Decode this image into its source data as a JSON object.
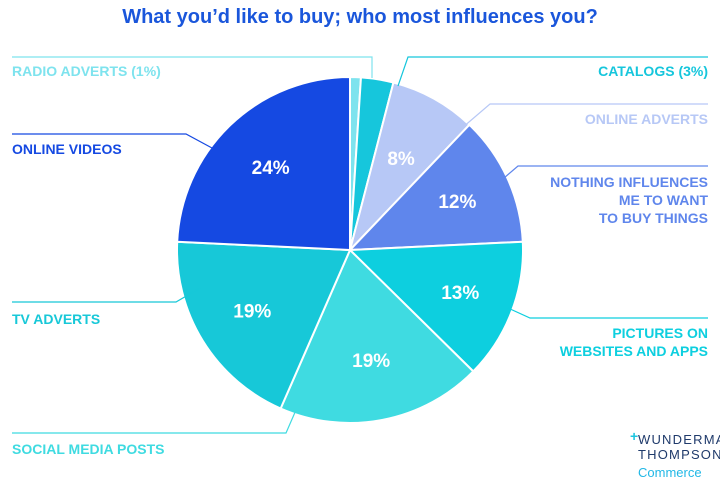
{
  "chart_data": {
    "type": "pie",
    "title": "What you’d like to buy; who most influences you?",
    "slices": [
      {
        "label": "RADIO ADVERTS (1%)",
        "value": 1,
        "color": "#7ee3ee",
        "data_label": ""
      },
      {
        "label": "CATALOGS (3%)",
        "value": 3,
        "color": "#16c6dc",
        "data_label": ""
      },
      {
        "label": "ONLINE ADVERTS",
        "value": 8,
        "color": "#b7c8f6",
        "data_label": "8%"
      },
      {
        "label": "NOTHING INFLUENCES ME TO WANT TO BUY THINGS",
        "value": 12,
        "color": "#5f86ec",
        "data_label": "12%"
      },
      {
        "label": "PICTURES ON WEBSITES AND APPS",
        "value": 13,
        "color": "#0dcfdf",
        "data_label": "13%"
      },
      {
        "label": "SOCIAL MEDIA POSTS",
        "value": 19,
        "color": "#3fdbe1",
        "data_label": "19%"
      },
      {
        "label": "TV ADVERTS",
        "value": 19,
        "color": "#17c8d8",
        "data_label": "19%"
      },
      {
        "label": "ONLINE VIDEOS",
        "value": 24,
        "color": "#1549e2",
        "data_label": "24%"
      }
    ]
  },
  "logo": {
    "line1": "WUNDERMAN",
    "line2": "THOMPSON",
    "line3": "Commerce"
  }
}
